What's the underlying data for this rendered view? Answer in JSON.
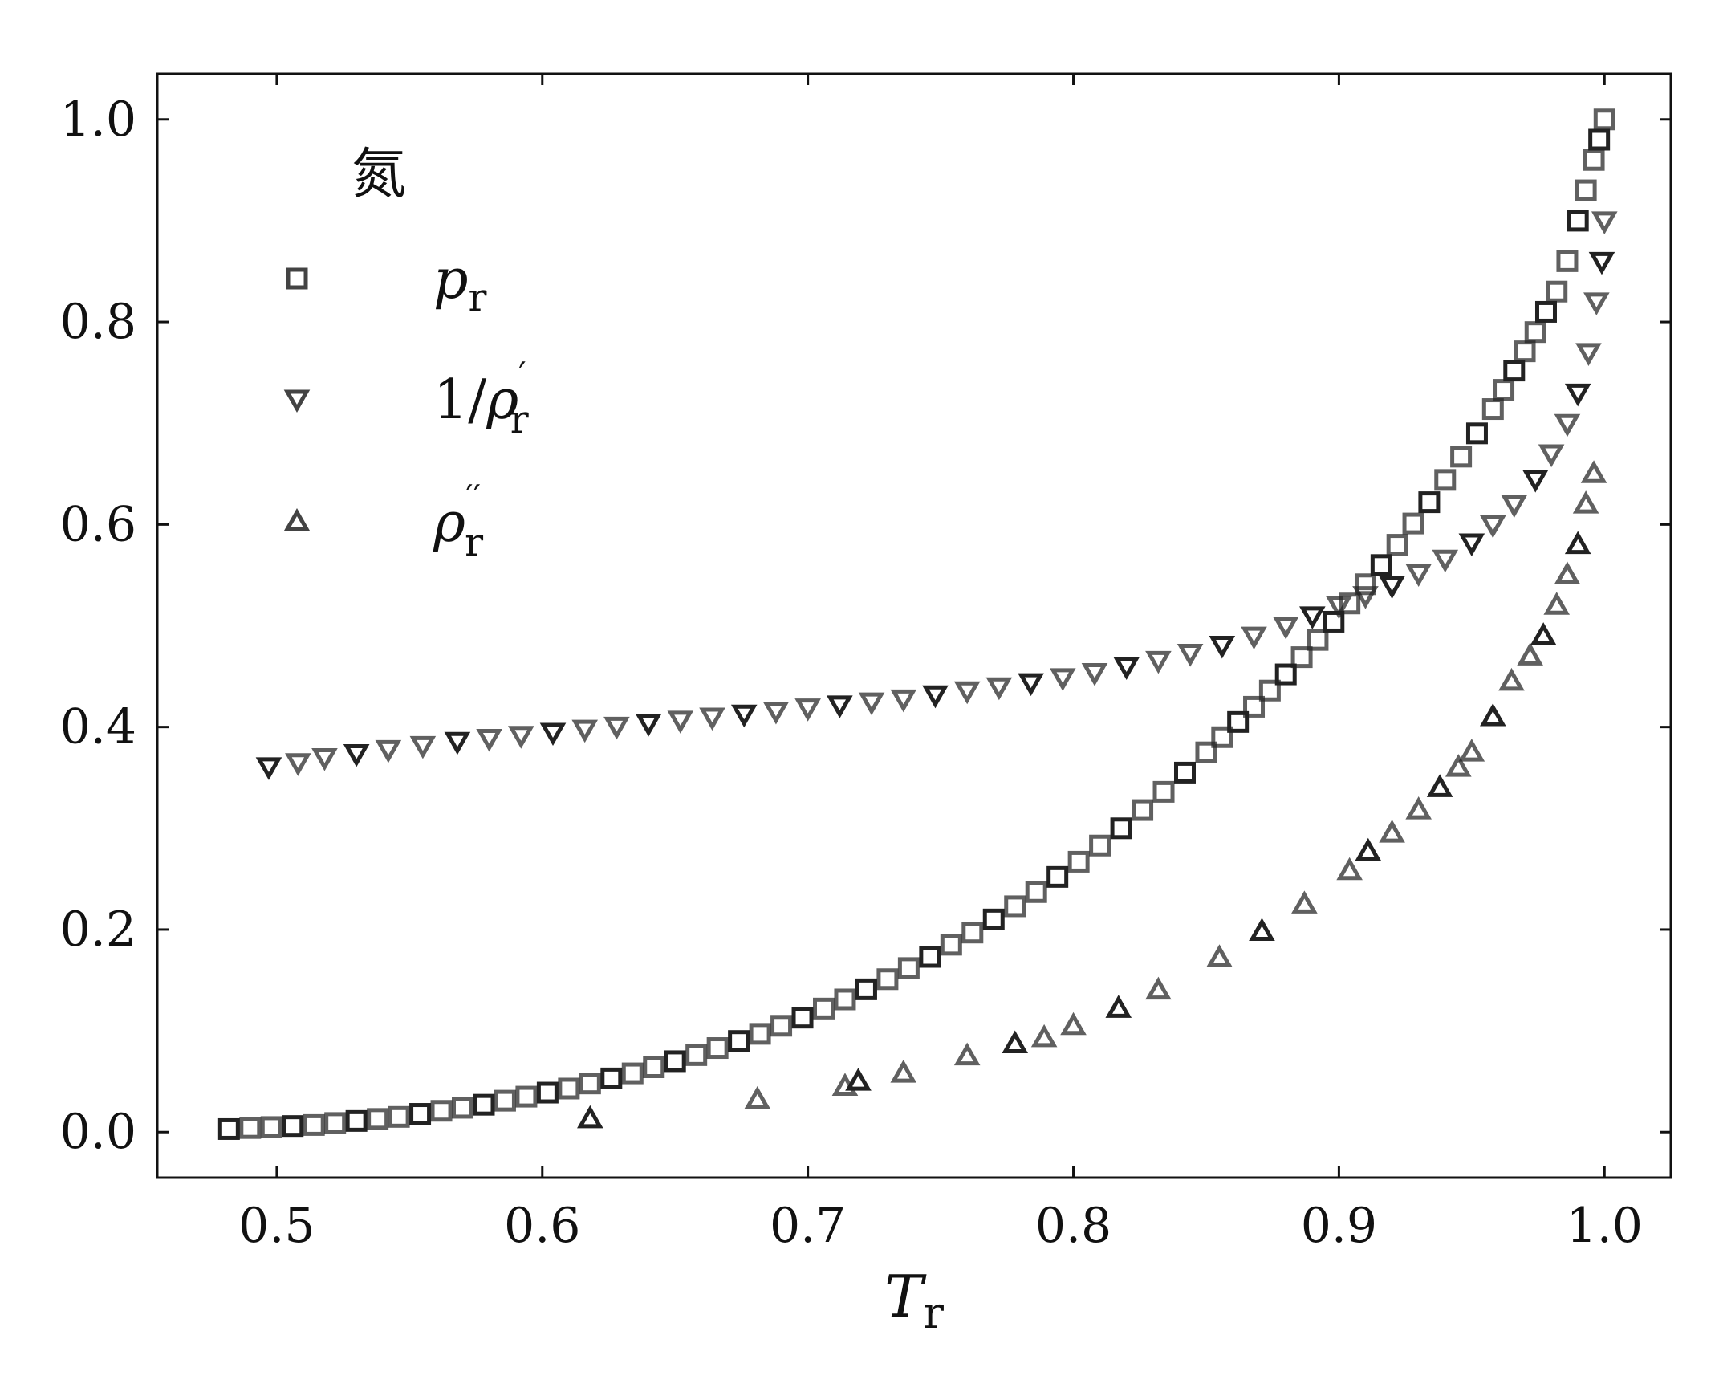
{
  "chart_data": {
    "type": "scatter",
    "title": "",
    "xlabel": "T",
    "xlabel_sub": "r",
    "ylabel": "",
    "xlim": [
      0.455,
      1.025
    ],
    "ylim": [
      -0.045,
      1.045
    ],
    "xticks": [
      0.5,
      0.6,
      0.7,
      0.8,
      0.9,
      1.0
    ],
    "xtick_labels": [
      "0.5",
      "0.6",
      "0.7",
      "0.8",
      "0.9",
      "1.0"
    ],
    "yticks": [
      0.0,
      0.2,
      0.4,
      0.6,
      0.8,
      1.0
    ],
    "ytick_labels": [
      "0.0",
      "0.2",
      "0.4",
      "0.6",
      "0.8",
      "1.0"
    ],
    "grid": false,
    "legend": {
      "placement": "top-left",
      "title": "氮",
      "entries": [
        {
          "marker": "square",
          "main": "p",
          "sub": "r",
          "sup": "",
          "prefix": ""
        },
        {
          "marker": "triangle-down",
          "main": "ρ",
          "sub": "r",
          "sup": "′",
          "prefix": "1/"
        },
        {
          "marker": "triangle-up",
          "main": "ρ",
          "sub": "r",
          "sup": "′′",
          "prefix": ""
        }
      ]
    },
    "marker_color": "#222222",
    "series": [
      {
        "marker": "square",
        "x": [
          0.482,
          0.49,
          0.498,
          0.506,
          0.514,
          0.522,
          0.53,
          0.538,
          0.546,
          0.554,
          0.562,
          0.57,
          0.578,
          0.586,
          0.594,
          0.602,
          0.61,
          0.618,
          0.626,
          0.634,
          0.642,
          0.65,
          0.658,
          0.666,
          0.674,
          0.682,
          0.69,
          0.698,
          0.706,
          0.714,
          0.722,
          0.73,
          0.738,
          0.746,
          0.754,
          0.762,
          0.77,
          0.778,
          0.786,
          0.794,
          0.802,
          0.81,
          0.818,
          0.826,
          0.834,
          0.842,
          0.85,
          0.856,
          0.862,
          0.868,
          0.874,
          0.88,
          0.886,
          0.892,
          0.898,
          0.904,
          0.91,
          0.916,
          0.922,
          0.928,
          0.934,
          0.94,
          0.946,
          0.952,
          0.958,
          0.962,
          0.966,
          0.97,
          0.974,
          0.978,
          0.982,
          0.986,
          0.99,
          0.993,
          0.996,
          0.998,
          1.0
        ],
        "y": [
          0.003,
          0.004,
          0.005,
          0.006,
          0.007,
          0.009,
          0.011,
          0.013,
          0.015,
          0.018,
          0.021,
          0.024,
          0.027,
          0.031,
          0.035,
          0.039,
          0.043,
          0.048,
          0.053,
          0.058,
          0.064,
          0.07,
          0.076,
          0.083,
          0.09,
          0.097,
          0.105,
          0.113,
          0.122,
          0.131,
          0.141,
          0.151,
          0.162,
          0.173,
          0.185,
          0.197,
          0.21,
          0.223,
          0.237,
          0.252,
          0.267,
          0.283,
          0.3,
          0.318,
          0.336,
          0.355,
          0.375,
          0.39,
          0.405,
          0.42,
          0.436,
          0.452,
          0.469,
          0.486,
          0.504,
          0.522,
          0.541,
          0.56,
          0.58,
          0.601,
          0.622,
          0.644,
          0.667,
          0.69,
          0.714,
          0.733,
          0.752,
          0.771,
          0.79,
          0.81,
          0.83,
          0.86,
          0.9,
          0.93,
          0.96,
          0.98,
          1.0
        ]
      },
      {
        "marker": "triangle-down",
        "x": [
          0.497,
          0.508,
          0.518,
          0.53,
          0.542,
          0.555,
          0.568,
          0.58,
          0.592,
          0.604,
          0.616,
          0.628,
          0.64,
          0.652,
          0.664,
          0.676,
          0.688,
          0.7,
          0.712,
          0.724,
          0.736,
          0.748,
          0.76,
          0.772,
          0.784,
          0.796,
          0.808,
          0.82,
          0.832,
          0.844,
          0.856,
          0.868,
          0.88,
          0.89,
          0.9,
          0.91,
          0.92,
          0.93,
          0.94,
          0.95,
          0.958,
          0.966,
          0.974,
          0.98,
          0.986,
          0.99,
          0.994,
          0.997,
          0.999,
          1.0
        ],
        "y": [
          0.361,
          0.365,
          0.37,
          0.374,
          0.378,
          0.382,
          0.386,
          0.389,
          0.392,
          0.395,
          0.398,
          0.401,
          0.404,
          0.407,
          0.41,
          0.413,
          0.416,
          0.419,
          0.422,
          0.425,
          0.428,
          0.432,
          0.436,
          0.44,
          0.444,
          0.449,
          0.454,
          0.46,
          0.466,
          0.473,
          0.481,
          0.49,
          0.5,
          0.51,
          0.52,
          0.53,
          0.54,
          0.552,
          0.566,
          0.582,
          0.6,
          0.62,
          0.645,
          0.67,
          0.7,
          0.73,
          0.77,
          0.82,
          0.86,
          0.9
        ]
      },
      {
        "marker": "triangle-up",
        "x": [
          0.618,
          0.681,
          0.714,
          0.719,
          0.736,
          0.76,
          0.778,
          0.789,
          0.8,
          0.817,
          0.832,
          0.855,
          0.871,
          0.887,
          0.904,
          0.911,
          0.92,
          0.93,
          0.938,
          0.945,
          0.95,
          0.958,
          0.965,
          0.972,
          0.977,
          0.982,
          0.986,
          0.99,
          0.993,
          0.996
        ],
        "y": [
          0.013,
          0.032,
          0.045,
          0.05,
          0.058,
          0.075,
          0.087,
          0.093,
          0.105,
          0.122,
          0.14,
          0.172,
          0.198,
          0.225,
          0.258,
          0.277,
          0.295,
          0.318,
          0.34,
          0.36,
          0.375,
          0.41,
          0.445,
          0.47,
          0.49,
          0.52,
          0.55,
          0.58,
          0.62,
          0.65
        ]
      }
    ]
  }
}
